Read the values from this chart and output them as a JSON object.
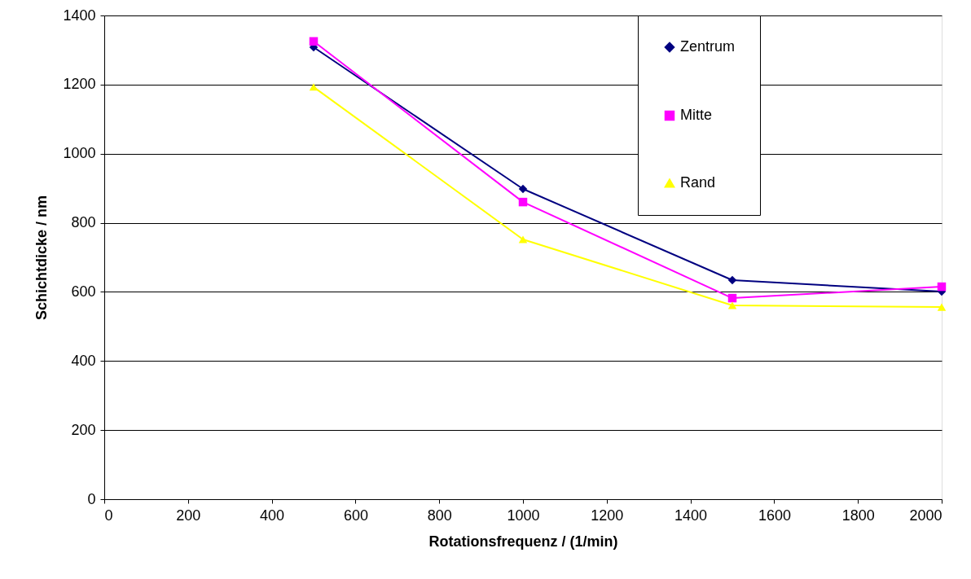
{
  "chart_data": {
    "type": "line",
    "xlabel": "Rotationsfrequenz / (1/min)",
    "ylabel": "Schichtdicke / nm",
    "x": [
      500,
      1000,
      1500,
      2000
    ],
    "series": [
      {
        "name": "Zentrum",
        "color": "#000080",
        "marker": "diamond",
        "values": [
          1308,
          898,
          634,
          601
        ]
      },
      {
        "name": "Mitte",
        "color": "#ff00ff",
        "marker": "square",
        "values": [
          1325,
          860,
          582,
          615
        ]
      },
      {
        "name": "Rand",
        "color": "#ffff00",
        "marker": "triangle",
        "values": [
          1193,
          752,
          561,
          556
        ]
      }
    ],
    "xlim": [
      0,
      2000
    ],
    "xticks": [
      0,
      200,
      400,
      600,
      800,
      1000,
      1200,
      1400,
      1600,
      1800,
      2000
    ],
    "ylim": [
      0,
      1400
    ],
    "yticks": [
      0,
      200,
      400,
      600,
      800,
      1000,
      1200,
      1400
    ],
    "grid": "y",
    "legend": "top right",
    "line_style": "solid"
  }
}
